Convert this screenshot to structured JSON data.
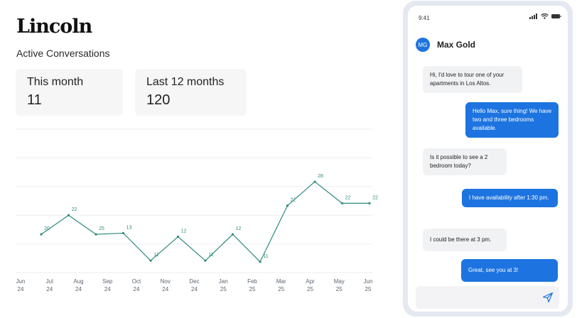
{
  "brand": {
    "logo": "Lincoln"
  },
  "section": {
    "title": "Active Conversations"
  },
  "stats": [
    {
      "label": "This month",
      "value": "11"
    },
    {
      "label": "Last 12 months",
      "value": "120"
    }
  ],
  "chart_data": {
    "type": "line",
    "categories": [
      [
        "Jun",
        "24"
      ],
      [
        "Jul",
        "24"
      ],
      [
        "Aug",
        "24"
      ],
      [
        "Sep",
        "24"
      ],
      [
        "Oct",
        "24"
      ],
      [
        "Nov",
        "24"
      ],
      [
        "Dec",
        "24"
      ],
      [
        "Jan",
        "25"
      ],
      [
        "Feb",
        "25"
      ],
      [
        "Mar",
        "25"
      ],
      [
        "Apr",
        "25"
      ],
      [
        "May",
        "25"
      ],
      [
        "Jun",
        "25"
      ]
    ],
    "x": [
      "Jul 24",
      "Aug 24",
      "Sep 24",
      "Oct 24",
      "Nov 24",
      "Dec 24",
      "Jan 25",
      "Feb 25",
      "Mar 25",
      "Apr 25",
      "May 25",
      "Jun 25"
    ],
    "values": [
      20,
      22,
      25,
      13,
      11,
      12,
      11,
      12,
      11,
      22,
      28,
      22,
      22
    ],
    "labels": [
      "20",
      "22",
      "25",
      "13",
      "11",
      "12",
      "11",
      "12",
      "11",
      "22",
      "28",
      "22",
      "22"
    ],
    "plotted": [
      16,
      24,
      16,
      16.5,
      5,
      15,
      5,
      16,
      4.5,
      28,
      38,
      29,
      29
    ],
    "ylim": [
      0,
      60
    ],
    "grid": true,
    "color": "#2e8b7e"
  },
  "phone": {
    "time": "9:41",
    "contact": {
      "initials": "MG",
      "name": "Max Gold"
    },
    "messages": [
      {
        "dir": "in",
        "text": "Hi, I'd love to tour one of your apartments in Los Altos."
      },
      {
        "dir": "out",
        "text": "Hello Max, sure thing! We have two and three bedrooms available."
      },
      {
        "dir": "in",
        "text": "Is it possible to see a 2 bedroom today?"
      },
      {
        "dir": "out",
        "text": "I have availability after 1:30 pm."
      },
      {
        "dir": "in",
        "text": "I could be there at 3 pm."
      },
      {
        "dir": "out",
        "text": "Great, see you at 3!"
      }
    ],
    "accent": "#1d74e0"
  }
}
